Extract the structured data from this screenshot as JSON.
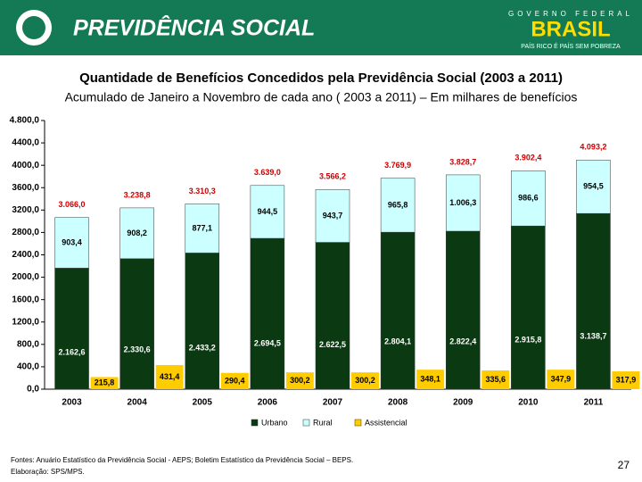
{
  "header": {
    "title": "PREVIDÊNCIA SOCIAL",
    "gov": "GOVERNO FEDERAL",
    "brand": "BRASIL",
    "slogan": "PAÍS RICO É PAÍS SEM POBREZA"
  },
  "chart_data": {
    "type": "bar",
    "title": "Quantidade de Benefícios Concedidos pela Previdência Social (2003 a 2011)",
    "subtitle": "Acumulado de Janeiro a Novembro de cada ano ( 2003 a 2011) – Em milhares de benefícios",
    "categories": [
      "2003",
      "2004",
      "2005",
      "2006",
      "2007",
      "2008",
      "2009",
      "2010",
      "2011"
    ],
    "series": [
      {
        "name": "Urbano",
        "color": "#0b3a12",
        "stacked": true,
        "values": [
          2162.6,
          2330.6,
          2433.2,
          2694.5,
          2622.5,
          2804.1,
          2822.4,
          2915.8,
          3138.7
        ],
        "value_labels": [
          "2.162,6",
          "2.330,6",
          "2.433,2",
          "2.694,5",
          "2.622,5",
          "2.804,1",
          "2.822,4",
          "2.915,8",
          "3.138,7"
        ]
      },
      {
        "name": "Rural",
        "color": "#ccffff",
        "stacked": true,
        "values": [
          903.4,
          908.2,
          877.1,
          944.5,
          943.7,
          965.8,
          1006.3,
          986.6,
          954.5
        ],
        "value_labels": [
          "903,4",
          "908,2",
          "877,1",
          "944,5",
          "943,7",
          "965,8",
          "1.006,3",
          "986,6",
          "954,5"
        ]
      },
      {
        "name": "Assistencial",
        "color": "#ffcc00",
        "stacked": false,
        "values": [
          215.8,
          431.4,
          290.4,
          300.2,
          300.2,
          348.1,
          335.6,
          347.9,
          317.9
        ],
        "value_labels": [
          "215,8",
          "431,4",
          "290,4",
          "300,2",
          "300,2",
          "348,1",
          "335,6",
          "347,9",
          "317,9"
        ]
      }
    ],
    "totals": {
      "color": "#cc0000",
      "values": [
        3066.0,
        3238.8,
        3310.3,
        3639.0,
        3566.2,
        3769.9,
        3828.7,
        3902.4,
        4093.2
      ],
      "value_labels": [
        "3.066,0",
        "3.238,8",
        "3.310,3",
        "3.639,0",
        "3.566,2",
        "3.769,9",
        "3.828,7",
        "3.902,4",
        "4.093,2"
      ]
    },
    "ylim": [
      0,
      4800
    ],
    "yticks": [
      {
        "value": 0,
        "label": "0,0"
      },
      {
        "value": 400,
        "label": "400,0"
      },
      {
        "value": 800,
        "label": "800,0"
      },
      {
        "value": 1200,
        "label": "1200,0"
      },
      {
        "value": 1600,
        "label": "1600,0"
      },
      {
        "value": 2000,
        "label": "2000,0"
      },
      {
        "value": 2400,
        "label": "2400,0"
      },
      {
        "value": 2800,
        "label": "2800,0"
      },
      {
        "value": 3200,
        "label": "3200,0"
      },
      {
        "value": 3600,
        "label": "3600,0"
      },
      {
        "value": 4000,
        "label": "4000,0"
      },
      {
        "value": 4400,
        "label": "4400,0"
      },
      {
        "value": 4800,
        "label": "4.800,0"
      }
    ],
    "grid": false,
    "legend": "bottom"
  },
  "footer": {
    "source": "Fontes: Anuário Estatístico da Previdência Social - AEPS; Boletim Estatístico da Previdência Social – BEPS.",
    "credit": "Elaboração: SPS/MPS.",
    "page_number": "27"
  }
}
